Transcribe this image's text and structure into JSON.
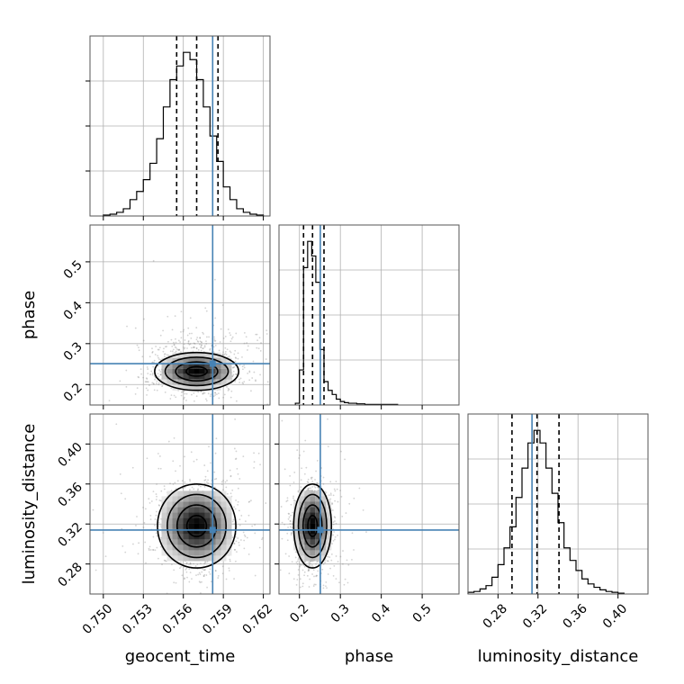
{
  "chart_data": {
    "type": "corner",
    "parameters": [
      {
        "name": "geocent_time",
        "range": [
          0.749,
          0.7625
        ],
        "ticks": [
          0.75,
          0.753,
          0.756,
          0.759,
          0.762
        ],
        "tick_labels": [
          "0.750",
          "0.753",
          "0.756",
          "0.759",
          "0.762"
        ],
        "truth": 0.7582,
        "quantiles": [
          0.7555,
          0.757,
          0.7586
        ]
      },
      {
        "name": "phase",
        "range": [
          0.15,
          0.59
        ],
        "ticks": [
          0.2,
          0.3,
          0.4,
          0.5
        ],
        "tick_labels": [
          "0.2",
          "0.3",
          "0.4",
          "0.5"
        ],
        "truth": 0.251,
        "quantiles": [
          0.21,
          0.232,
          0.26
        ]
      },
      {
        "name": "luminosity_distance",
        "range": [
          0.25,
          0.43
        ],
        "ticks": [
          0.28,
          0.32,
          0.36,
          0.4
        ],
        "tick_labels": [
          "0.28",
          "0.32",
          "0.36",
          "0.40"
        ],
        "truth": 0.314,
        "quantiles": [
          0.294,
          0.319,
          0.341
        ]
      }
    ],
    "histograms": [
      {
        "parameter": "geocent_time",
        "bin_edges": [
          0.75,
          0.7505,
          0.751,
          0.7515,
          0.752,
          0.7525,
          0.753,
          0.7535,
          0.754,
          0.7545,
          0.755,
          0.7555,
          0.756,
          0.7565,
          0.757,
          0.7575,
          0.758,
          0.7585,
          0.759,
          0.7595,
          0.76,
          0.7605,
          0.761,
          0.7615,
          0.762
        ],
        "counts": [
          1,
          2,
          4,
          8,
          18,
          27,
          40,
          58,
          85,
          120,
          150,
          165,
          180,
          172,
          150,
          120,
          88,
          60,
          32,
          18,
          8,
          4,
          2,
          1
        ]
      },
      {
        "parameter": "phase",
        "bin_edges": [
          0.19,
          0.2,
          0.21,
          0.22,
          0.23,
          0.24,
          0.25,
          0.26,
          0.27,
          0.28,
          0.29,
          0.3,
          0.31,
          0.32,
          0.34,
          0.36,
          0.38,
          0.4,
          0.42,
          0.44
        ],
        "counts": [
          3,
          60,
          235,
          280,
          255,
          210,
          95,
          40,
          25,
          18,
          10,
          6,
          4,
          3,
          2,
          1,
          1,
          1,
          1
        ]
      },
      {
        "parameter": "luminosity_distance",
        "bin_edges": [
          0.25,
          0.256,
          0.262,
          0.268,
          0.274,
          0.28,
          0.286,
          0.292,
          0.298,
          0.304,
          0.31,
          0.316,
          0.322,
          0.328,
          0.334,
          0.34,
          0.346,
          0.352,
          0.358,
          0.364,
          0.37,
          0.376,
          0.382,
          0.388,
          0.394,
          0.4,
          0.406
        ],
        "counts": [
          2,
          3,
          6,
          10,
          20,
          35,
          55,
          80,
          115,
          150,
          180,
          195,
          180,
          150,
          120,
          85,
          55,
          40,
          28,
          18,
          12,
          8,
          5,
          3,
          2,
          1
        ]
      }
    ],
    "joint": [
      {
        "x": "geocent_time",
        "y": "phase",
        "mean": [
          0.757,
          0.232
        ],
        "sd": [
          0.0015,
          0.022
        ],
        "contour_sigmas": [
          0.5,
          1.0,
          1.5,
          2.0
        ]
      },
      {
        "x": "geocent_time",
        "y": "luminosity_distance",
        "mean": [
          0.757,
          0.318
        ],
        "sd": [
          0.0014,
          0.02
        ],
        "contour_sigmas": [
          0.5,
          1.0,
          1.5,
          2.0
        ]
      },
      {
        "x": "phase",
        "y": "luminosity_distance",
        "mean": [
          0.232,
          0.318
        ],
        "sd": [
          0.022,
          0.02
        ],
        "contour_sigmas": [
          0.5,
          1.0,
          1.5,
          2.0
        ]
      }
    ],
    "colors": {
      "truth": "#4682b4",
      "histogram": "#000000",
      "quantile": "#000000",
      "grid": "#b0b0b0",
      "scatter": "#808080"
    },
    "grid": true
  }
}
